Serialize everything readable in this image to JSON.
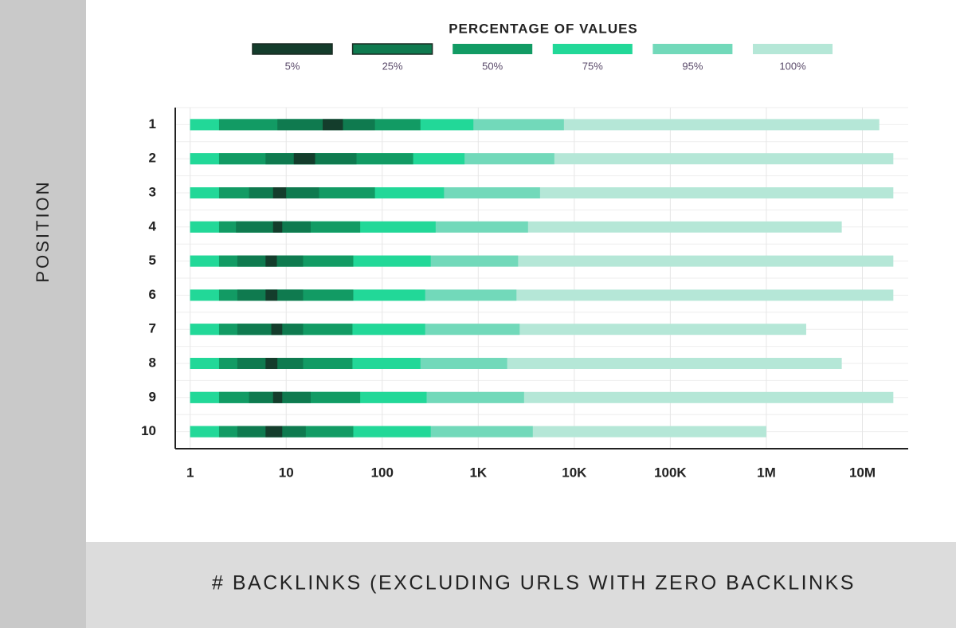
{
  "chart_data": {
    "type": "range_bar",
    "legend_title": "PERCENTAGE OF VALUES",
    "ylabel": "POSITION",
    "xlabel": "# BACKLINKS (EXCLUDING URLS WITH ZERO BACKLINKS",
    "categories": [
      "1",
      "2",
      "3",
      "4",
      "5",
      "6",
      "7",
      "8",
      "9",
      "10"
    ],
    "xscale": "log",
    "xlim": [
      0.7,
      30000000
    ],
    "xticks": [
      1,
      10,
      100,
      {
        "value": 1000,
        "label": "1K"
      },
      {
        "value": 10000,
        "label": "10K"
      },
      {
        "value": 100000,
        "label": "100K"
      },
      {
        "value": 1000000,
        "label": "1M"
      },
      {
        "value": 10000000,
        "label": "10M"
      }
    ],
    "grid": true,
    "series": [
      {
        "name": "5%",
        "color": "#143d2c",
        "low": [
          24,
          12,
          7.3,
          7.3,
          6.1,
          6.1,
          7.0,
          6.1,
          7.3,
          6.1
        ],
        "high": [
          39,
          20,
          10,
          9.1,
          8.0,
          8.1,
          9.1,
          8.1,
          9.1,
          9.1
        ]
      },
      {
        "name": "25%",
        "color": "#0f7a4f",
        "low": [
          8.1,
          6.1,
          4.1,
          3.0,
          3.1,
          3.1,
          3.1,
          3.1,
          4.1,
          3.1
        ],
        "high": [
          84,
          54,
          22,
          18,
          15,
          15,
          15,
          15,
          18,
          16
        ]
      },
      {
        "name": "50%",
        "color": "#129b64",
        "low": [
          2,
          2,
          2,
          2,
          2,
          2,
          2,
          2,
          2,
          2
        ],
        "high": [
          250,
          210,
          84,
          59,
          50,
          50,
          49,
          49,
          59,
          50
        ]
      },
      {
        "name": "75%",
        "color": "#22d898",
        "low": [
          1,
          1,
          1,
          1,
          1,
          1,
          1,
          1,
          1,
          1
        ],
        "high": [
          890,
          720,
          440,
          360,
          320,
          280,
          280,
          250,
          290,
          320
        ]
      },
      {
        "name": "95%",
        "color": "#72d9ba",
        "low": [
          1,
          1,
          1,
          1,
          1,
          1,
          1,
          1,
          1,
          1
        ],
        "high": [
          7800,
          6200,
          4400,
          3300,
          2600,
          2500,
          2700,
          2000,
          3000,
          3700
        ]
      },
      {
        "name": "100%",
        "color": "#b5e7d7",
        "low": [
          1,
          1,
          1,
          1,
          1,
          1,
          1,
          1,
          1,
          1
        ],
        "high": [
          15000000,
          21000000,
          21000000,
          6100000,
          21000000,
          21000000,
          2600000,
          6100000,
          21000000,
          1000000
        ]
      }
    ]
  }
}
